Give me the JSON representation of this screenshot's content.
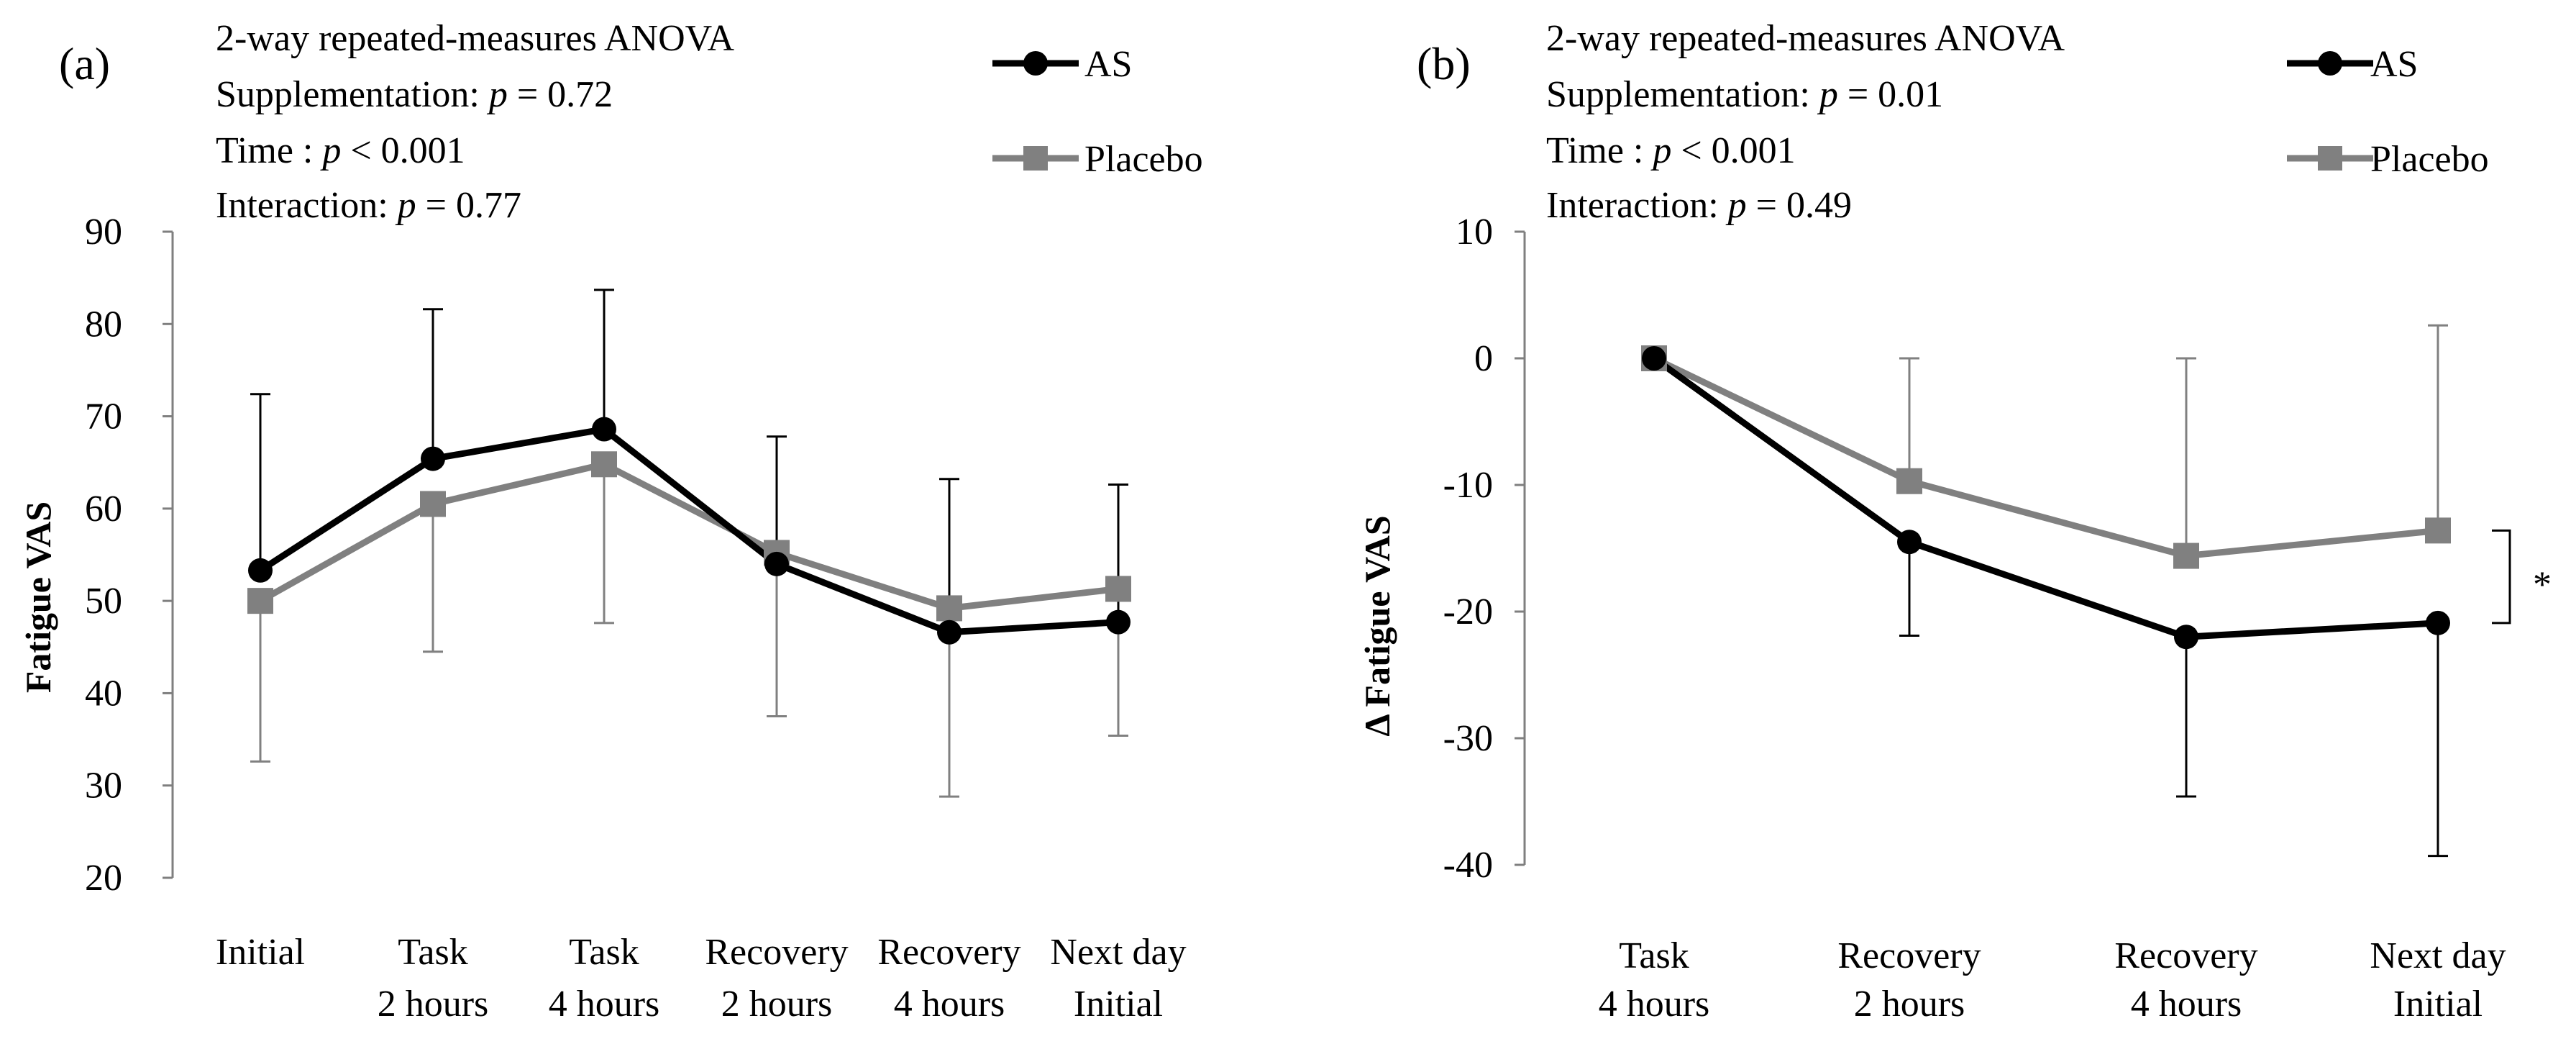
{
  "chart_data": [
    {
      "panel_label": "(a)",
      "type": "line",
      "ylabel": "Fatigue VAS",
      "ylim": [
        20,
        90
      ],
      "yticks": [
        20,
        30,
        40,
        50,
        60,
        70,
        80,
        90
      ],
      "ytick_labels": [
        "20",
        "30",
        "40",
        "50",
        "60",
        "70",
        "80",
        "90"
      ],
      "categories": [
        {
          "line1": "Initial",
          "line2": ""
        },
        {
          "line1": "Task",
          "line2": "2 hours"
        },
        {
          "line1": "Task",
          "line2": "4 hours"
        },
        {
          "line1": "Recovery",
          "line2": "2 hours"
        },
        {
          "line1": "Recovery",
          "line2": "4 hours"
        },
        {
          "line1": "Next day",
          "line2": "Initial"
        }
      ],
      "stats": {
        "title": "2-way repeated-measures ANOVA",
        "lines": [
          {
            "label": "Supplementation: ",
            "p": "p",
            "rest": " = 0.72"
          },
          {
            "label": "Time : ",
            "p": "p",
            "rest": " < 0.001"
          },
          {
            "label": "Interaction: ",
            "p": "p",
            "rest": " = 0.77"
          }
        ]
      },
      "series": [
        {
          "name": "AS",
          "color": "#000000",
          "marker": "circle",
          "values": [
            53.3,
            65.4,
            68.6,
            54.0,
            46.6,
            47.7
          ],
          "sd": [
            19.1,
            16.2,
            15.1,
            13.8,
            16.6,
            14.9
          ],
          "error_direction": "up"
        },
        {
          "name": "Placebo",
          "color": "#808080",
          "marker": "square",
          "values": [
            50.0,
            60.5,
            64.8,
            55.2,
            49.2,
            51.3
          ],
          "sd": [
            17.4,
            16.0,
            17.2,
            17.7,
            20.4,
            15.9
          ],
          "error_direction": "down"
        }
      ],
      "annotation": null
    },
    {
      "panel_label": "(b)",
      "type": "line",
      "ylabel": "Δ Fatigue VAS",
      "ylim": [
        -40,
        10
      ],
      "yticks": [
        -40,
        -30,
        -20,
        -10,
        0,
        10
      ],
      "ytick_labels": [
        "-40",
        "-30",
        "-20",
        "-10",
        "0",
        "10"
      ],
      "categories": [
        {
          "line1": "Task",
          "line2": "4 hours"
        },
        {
          "line1": "Recovery",
          "line2": "2 hours"
        },
        {
          "line1": "Recovery",
          "line2": "4 hours"
        },
        {
          "line1": "Next day",
          "line2": "Initial"
        }
      ],
      "stats": {
        "title": "2-way repeated-measures ANOVA",
        "lines": [
          {
            "label": "Supplementation: ",
            "p": "p",
            "rest": " = 0.01"
          },
          {
            "label": "Time : ",
            "p": "p",
            "rest": " < 0.001"
          },
          {
            "label": "Interaction: ",
            "p": "p",
            "rest": " = 0.49"
          }
        ]
      },
      "series": [
        {
          "name": "AS",
          "color": "#000000",
          "marker": "circle",
          "values": [
            0,
            -14.5,
            -22.0,
            -20.9
          ],
          "sd": [
            0,
            7.4,
            12.6,
            18.4
          ],
          "error_direction": "down"
        },
        {
          "name": "Placebo",
          "color": "#808080",
          "marker": "square",
          "values": [
            0,
            -9.7,
            -15.6,
            -13.6
          ],
          "sd": [
            0,
            9.7,
            15.6,
            16.2
          ],
          "error_direction": "up"
        }
      ],
      "annotation": {
        "text": "*",
        "between_series": [
          "Placebo",
          "AS"
        ],
        "at_category": 3
      }
    }
  ]
}
